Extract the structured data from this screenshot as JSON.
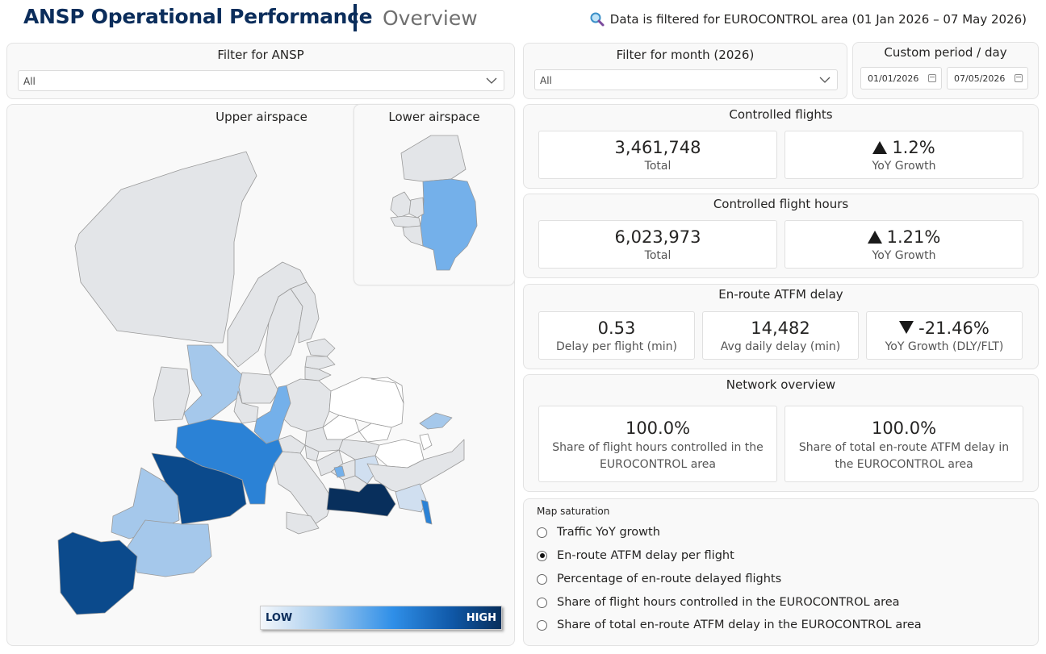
{
  "header": {
    "title": "ANSP Operational Performance",
    "subtitle": "Overview",
    "filter_note": "Data is filtered for EUROCONTROL area (01 Jan 2026 – 07 May 2026)"
  },
  "filters": {
    "ansp": {
      "title": "Filter for ANSP",
      "value": "All"
    },
    "month": {
      "title": "Filter for month (2026)",
      "value": "All"
    },
    "custom": {
      "title": "Custom period / day",
      "start": "01/01/2026",
      "end": "07/05/2026"
    }
  },
  "map": {
    "upper_title": "Upper airspace",
    "lower_title": "Lower airspace",
    "legend_low": "LOW",
    "legend_high": "HIGH",
    "colors": {
      "neutral": "#e3e5e8",
      "white": "#ffffff",
      "pale": "#d0dff0",
      "light": "#a5c8eb",
      "mid": "#74b0ea",
      "bright": "#2b82d6",
      "dark": "#0b4a8c",
      "darkest": "#082f5c"
    }
  },
  "kpis": {
    "controlled_flights": {
      "title": "Controlled flights",
      "total": "3,461,748",
      "total_label": "Total",
      "growth": "1.2%",
      "growth_label": "YoY Growth",
      "growth_dir": "up"
    },
    "flight_hours": {
      "title": "Controlled flight hours",
      "total": "6,023,973",
      "total_label": "Total",
      "growth": "1.21%",
      "growth_label": "YoY Growth",
      "growth_dir": "up"
    },
    "atfm_delay": {
      "title": "En-route ATFM delay",
      "per_flight": "0.53",
      "per_flight_label": "Delay per flight (min)",
      "avg_daily": "14,482",
      "avg_daily_label": "Avg daily delay (min)",
      "growth": "-21.46%",
      "growth_label": "YoY Growth (DLY/FLT)",
      "growth_dir": "down"
    },
    "network": {
      "title": "Network overview",
      "hours_share": "100.0%",
      "hours_share_label": "Share of flight hours controlled in the EUROCONTROL area",
      "delay_share": "100.0%",
      "delay_share_label": "Share of total en-route ATFM delay in the EUROCONTROL area"
    }
  },
  "saturation": {
    "title": "Map saturation",
    "options": [
      {
        "label": "Traffic YoY growth",
        "selected": false
      },
      {
        "label": "En-route ATFM delay per flight",
        "selected": true
      },
      {
        "label": "Percentage of en-route delayed flights",
        "selected": false
      },
      {
        "label": "Share of flight hours controlled in the EUROCONTROL area",
        "selected": false
      },
      {
        "label": "Share of total en-route ATFM delay in the EUROCONTROL area",
        "selected": false
      }
    ]
  }
}
